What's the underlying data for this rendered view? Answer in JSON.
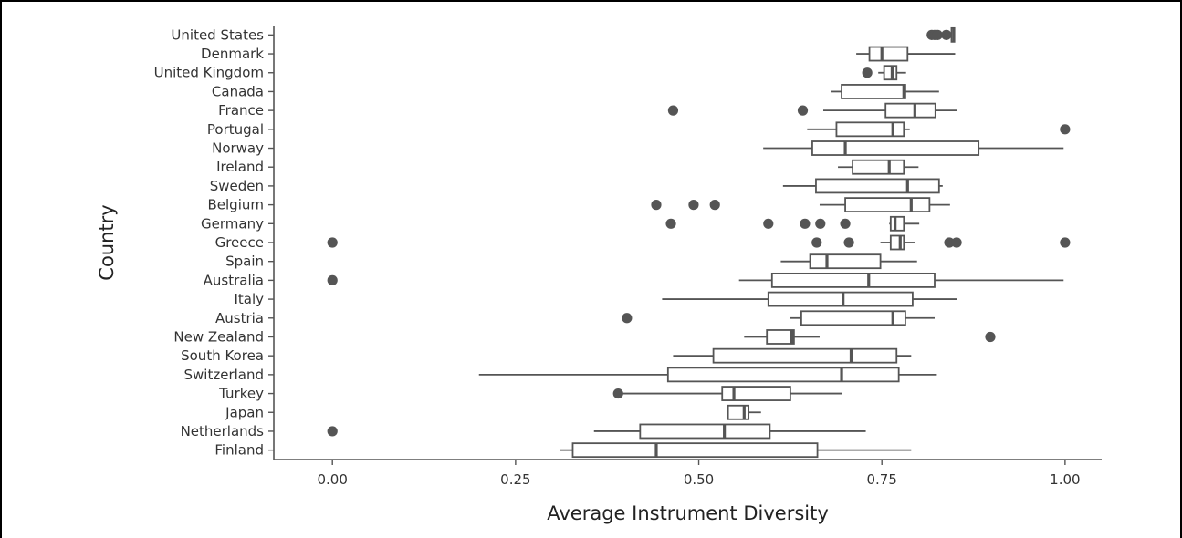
{
  "chart_data": {
    "type": "box",
    "orientation": "horizontal",
    "xlabel": "Average Instrument Diversity",
    "ylabel": "Country",
    "xlim": [
      -0.08,
      1.05
    ],
    "x_ticks": [
      0.0,
      0.25,
      0.5,
      0.75,
      1.0
    ],
    "x_tick_labels": [
      "0.00",
      "0.25",
      "0.50",
      "0.75",
      "1.00"
    ],
    "grid": false,
    "colors": {
      "stroke": "#555555",
      "outlier": "#555555",
      "box_fill": "#ffffff",
      "axis": "#555555"
    },
    "categories": [
      "United States",
      "Denmark",
      "United Kingdom",
      "Canada",
      "France",
      "Portugal",
      "Norway",
      "Ireland",
      "Sweden",
      "Belgium",
      "Germany",
      "Greece",
      "Spain",
      "Australia",
      "Italy",
      "Austria",
      "New Zealand",
      "South Korea",
      "Switzerland",
      "Turkey",
      "Japan",
      "Netherlands",
      "Finland"
    ],
    "boxes": [
      {
        "country": "United States",
        "whisker_low": 0.845,
        "q1": 0.845,
        "median": 0.848,
        "q3": 0.849,
        "whisker_high": 0.849,
        "outliers": [
          0.818,
          0.822,
          0.826,
          0.838
        ]
      },
      {
        "country": "Denmark",
        "whisker_low": 0.715,
        "q1": 0.733,
        "median": 0.75,
        "q3": 0.785,
        "whisker_high": 0.85,
        "outliers": []
      },
      {
        "country": "United Kingdom",
        "whisker_low": 0.745,
        "q1": 0.753,
        "median": 0.764,
        "q3": 0.77,
        "whisker_high": 0.783,
        "outliers": [
          0.73
        ]
      },
      {
        "country": "Canada",
        "whisker_low": 0.68,
        "q1": 0.695,
        "median": 0.78,
        "q3": 0.782,
        "whisker_high": 0.828,
        "outliers": []
      },
      {
        "country": "France",
        "whisker_low": 0.67,
        "q1": 0.755,
        "median": 0.795,
        "q3": 0.823,
        "whisker_high": 0.853,
        "outliers": [
          0.465,
          0.642
        ]
      },
      {
        "country": "Portugal",
        "whisker_low": 0.648,
        "q1": 0.688,
        "median": 0.765,
        "q3": 0.78,
        "whisker_high": 0.788,
        "outliers": [
          1.0
        ]
      },
      {
        "country": "Norway",
        "whisker_low": 0.588,
        "q1": 0.655,
        "median": 0.7,
        "q3": 0.882,
        "whisker_high": 0.998,
        "outliers": []
      },
      {
        "country": "Ireland",
        "whisker_low": 0.69,
        "q1": 0.71,
        "median": 0.76,
        "q3": 0.78,
        "whisker_high": 0.8,
        "outliers": []
      },
      {
        "country": "Sweden",
        "whisker_low": 0.615,
        "q1": 0.66,
        "median": 0.785,
        "q3": 0.828,
        "whisker_high": 0.833,
        "outliers": []
      },
      {
        "country": "Belgium",
        "whisker_low": 0.665,
        "q1": 0.7,
        "median": 0.79,
        "q3": 0.815,
        "whisker_high": 0.843,
        "outliers": [
          0.442,
          0.493,
          0.522
        ]
      },
      {
        "country": "Germany",
        "whisker_low": 0.76,
        "q1": 0.762,
        "median": 0.768,
        "q3": 0.78,
        "whisker_high": 0.801,
        "outliers": [
          0.462,
          0.595,
          0.645,
          0.666,
          0.7
        ]
      },
      {
        "country": "Greece",
        "whisker_low": 0.748,
        "q1": 0.762,
        "median": 0.775,
        "q3": 0.78,
        "whisker_high": 0.795,
        "outliers": [
          0.0,
          0.661,
          0.705,
          0.842,
          0.852,
          1.0
        ]
      },
      {
        "country": "Spain",
        "whisker_low": 0.612,
        "q1": 0.652,
        "median": 0.675,
        "q3": 0.748,
        "whisker_high": 0.798,
        "outliers": []
      },
      {
        "country": "Australia",
        "whisker_low": 0.555,
        "q1": 0.6,
        "median": 0.732,
        "q3": 0.822,
        "whisker_high": 0.998,
        "outliers": [
          0.0
        ]
      },
      {
        "country": "Italy",
        "whisker_low": 0.45,
        "q1": 0.595,
        "median": 0.697,
        "q3": 0.792,
        "whisker_high": 0.853,
        "outliers": []
      },
      {
        "country": "Austria",
        "whisker_low": 0.625,
        "q1": 0.64,
        "median": 0.765,
        "q3": 0.782,
        "whisker_high": 0.822,
        "outliers": [
          0.402
        ]
      },
      {
        "country": "New Zealand",
        "whisker_low": 0.562,
        "q1": 0.593,
        "median": 0.627,
        "q3": 0.63,
        "whisker_high": 0.665,
        "outliers": [
          0.898
        ]
      },
      {
        "country": "South Korea",
        "whisker_low": 0.465,
        "q1": 0.52,
        "median": 0.708,
        "q3": 0.77,
        "whisker_high": 0.79,
        "outliers": []
      },
      {
        "country": "Switzerland",
        "whisker_low": 0.2,
        "q1": 0.458,
        "median": 0.695,
        "q3": 0.773,
        "whisker_high": 0.825,
        "outliers": []
      },
      {
        "country": "Turkey",
        "whisker_low": 0.393,
        "q1": 0.532,
        "median": 0.548,
        "q3": 0.625,
        "whisker_high": 0.695,
        "outliers": [
          0.39
        ]
      },
      {
        "country": "Japan",
        "whisker_low": 0.54,
        "q1": 0.54,
        "median": 0.562,
        "q3": 0.568,
        "whisker_high": 0.585,
        "outliers": []
      },
      {
        "country": "Netherlands",
        "whisker_low": 0.357,
        "q1": 0.42,
        "median": 0.535,
        "q3": 0.597,
        "whisker_high": 0.728,
        "outliers": [
          0.0
        ]
      },
      {
        "country": "Finland",
        "whisker_low": 0.31,
        "q1": 0.328,
        "median": 0.442,
        "q3": 0.662,
        "whisker_high": 0.79,
        "outliers": []
      }
    ]
  }
}
